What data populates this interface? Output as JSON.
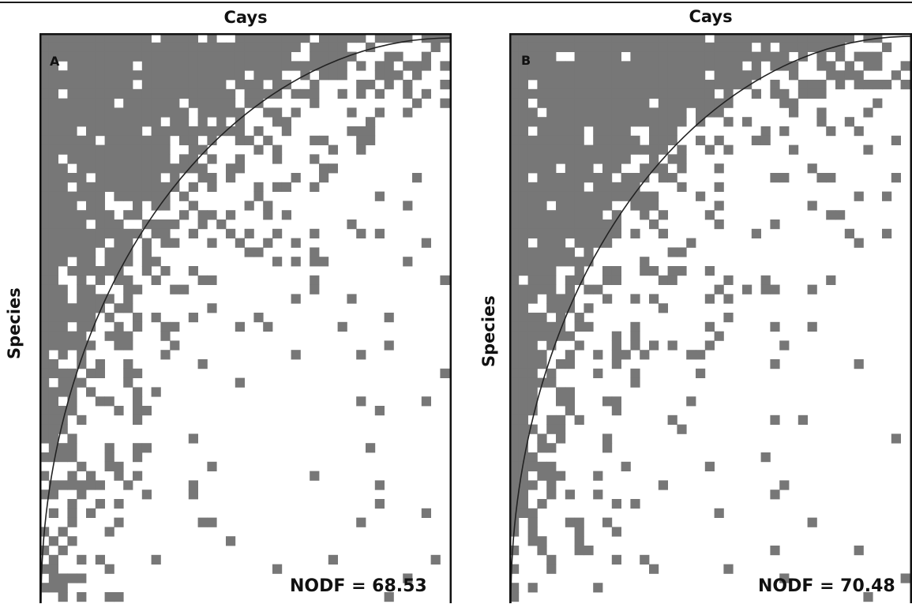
{
  "chart_data": [
    {
      "type": "heatmap",
      "panel_label": "A",
      "title": "Cays",
      "xlabel": "Cays",
      "ylabel": "Species",
      "annotation": "NODF = 68.53",
      "nodf": 68.53,
      "cell_color": "#777777",
      "curve_color": "#222222",
      "curve": "isocline arc from bottom-left to top-right"
    },
    {
      "type": "heatmap",
      "panel_label": "B",
      "title": "Cays",
      "xlabel": "Cays",
      "ylabel": "Species",
      "annotation": "NODF = 70.48",
      "nodf": 70.48,
      "cell_color": "#777777",
      "curve_color": "#222222",
      "curve": "isocline arc from bottom-left to top-right"
    }
  ]
}
